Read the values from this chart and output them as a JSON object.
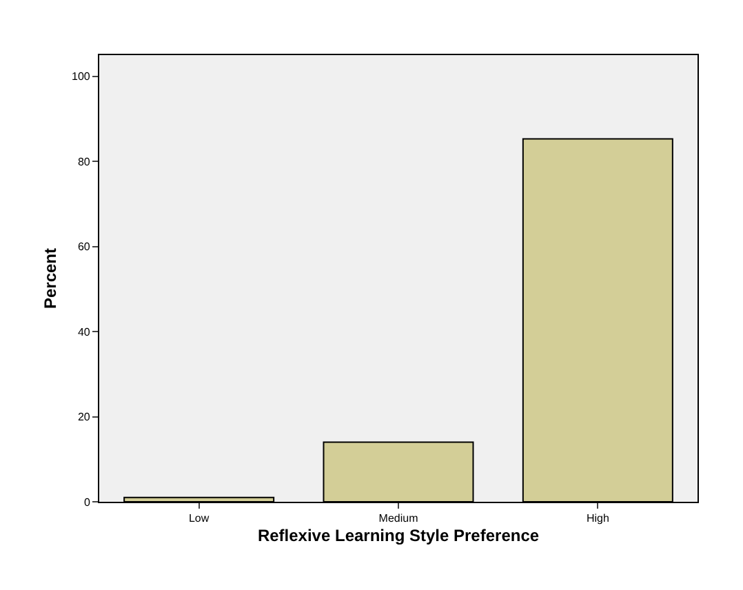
{
  "chart_data": {
    "type": "bar",
    "xlabel": "Reflexive Learning Style Preference",
    "ylabel": "Percent",
    "categories": [
      "Low",
      "Medium",
      "High"
    ],
    "values": [
      1,
      14,
      85.3
    ],
    "color": "#d3ce97",
    "ylim": [
      0,
      105
    ],
    "yticks": [
      0,
      20,
      40,
      60,
      80,
      100
    ],
    "grid": false
  }
}
